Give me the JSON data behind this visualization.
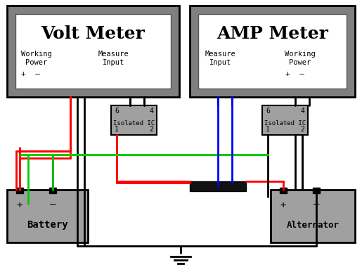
{
  "bg_color": "#ffffff",
  "border_color": "#000000",
  "meter_bg": "#808080",
  "meter_inner_bg": "#ffffff",
  "ic_bg": "#a0a0a0",
  "battery_bg": "#a0a0a0",
  "alt_bg": "#a0a0a0",
  "volt_meter_title": "Volt Meter",
  "amp_meter_title": "AMP Meter",
  "volt_left_label1": "Working",
  "volt_left_label2": "Power",
  "volt_left_pm": "+  –",
  "volt_right_label1": "Measure",
  "volt_right_label2": "Input",
  "amp_left_label1": "Measure",
  "amp_left_label2": "Input",
  "amp_right_label1": "Working",
  "amp_right_label2": "Power",
  "amp_right_pm": "+  –",
  "ic1_label": "Isolated IC",
  "ic2_label": "Isolated IC",
  "battery_label": "Battery",
  "alternator_label": "Alternator",
  "ground_symbol": true,
  "wire_red": "#ff0000",
  "wire_black": "#000000",
  "wire_green": "#00cc00",
  "wire_blue": "#0000ff",
  "fuse_color": "#111111"
}
